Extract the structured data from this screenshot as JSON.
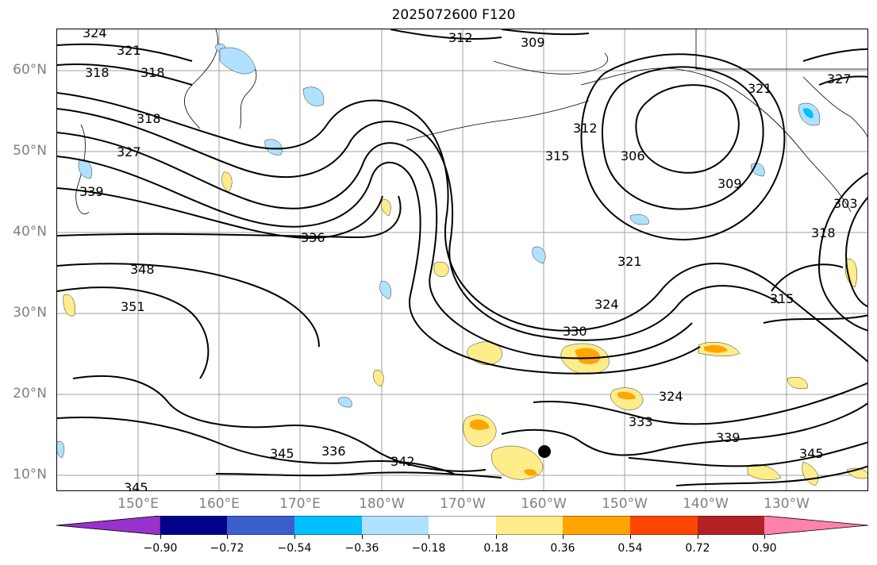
{
  "title": "2025072600 F120",
  "map": {
    "type": "contour-map",
    "contour_color": "#000000",
    "lat_labels": [
      "60°N",
      "50°N",
      "40°N",
      "30°N",
      "20°N",
      "10°N"
    ],
    "lon_labels": [
      "150°E",
      "160°E",
      "170°E",
      "180°W",
      "170°W",
      "160°W",
      "150°W",
      "140°W",
      "130°W"
    ],
    "contour_labels": [
      "324",
      "321",
      "318",
      "318",
      "318",
      "327",
      "339",
      "312",
      "309",
      "312",
      "315",
      "306",
      "309",
      "321",
      "327",
      "336",
      "348",
      "351",
      "321",
      "324",
      "330",
      "315",
      "324",
      "333",
      "339",
      "345",
      "336",
      "342",
      "345",
      "345",
      "318",
      "303"
    ],
    "marker": "storm-center-dot"
  },
  "colorbar": {
    "colors": [
      "#9932cc",
      "#00008b",
      "#3a5fcd",
      "#00bfff",
      "#b0e2ff",
      "#ffffff",
      "#ffec8b",
      "#ffa500",
      "#ff4500",
      "#b22222",
      "#ff82ab"
    ],
    "tick_labels": [
      "−0.90",
      "−0.72",
      "−0.54",
      "−0.36",
      "−0.18",
      "0.18",
      "0.36",
      "0.54",
      "0.72",
      "0.90"
    ]
  }
}
